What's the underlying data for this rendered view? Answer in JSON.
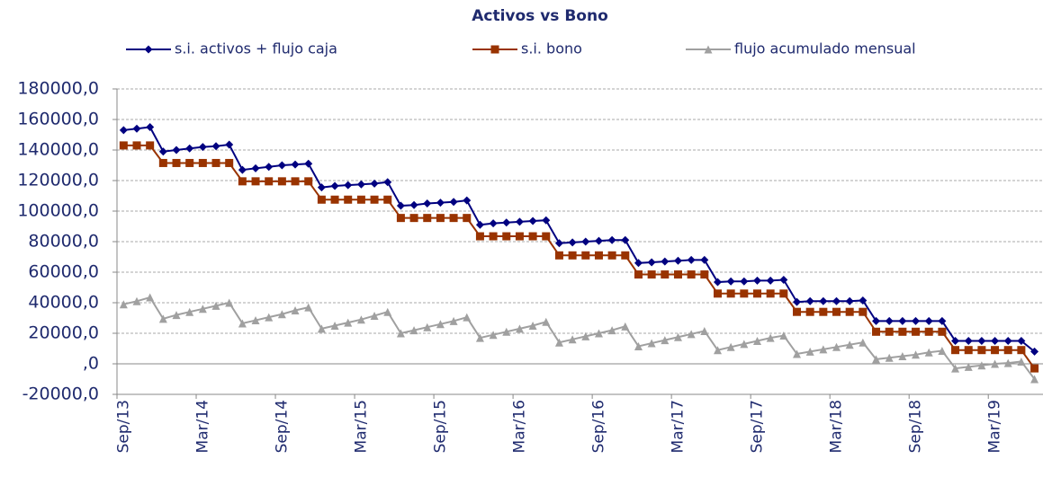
{
  "chart_data": {
    "type": "line",
    "title": "Activos vs Bono",
    "categories": [
      "Sep/13",
      null,
      null,
      null,
      null,
      null,
      "Mar/14",
      null,
      null,
      null,
      null,
      null,
      "Sep/14",
      null,
      null,
      null,
      null,
      null,
      "Mar/15",
      null,
      null,
      null,
      null,
      null,
      "Sep/15",
      null,
      null,
      null,
      null,
      null,
      "Mar/16",
      null,
      null,
      null,
      null,
      null,
      "Sep/16",
      null,
      null,
      null,
      null,
      null,
      "Mar/17",
      null,
      null,
      null,
      null,
      null,
      "Sep/17",
      null,
      null,
      null,
      null,
      null,
      "Mar/18",
      null,
      null,
      null,
      null,
      null,
      "Sep/18",
      null,
      null,
      null,
      null,
      null,
      "Mar/19",
      null,
      null,
      null
    ],
    "series": [
      {
        "name": "s.i. activos + flujo caja",
        "color": "#000080",
        "marker": "diamond",
        "values": [
          153000,
          154000,
          155000,
          139000,
          140000,
          141000,
          142000,
          142500,
          143500,
          127000,
          128000,
          129000,
          130000,
          130500,
          131000,
          115500,
          116500,
          117000,
          117500,
          118000,
          119000,
          103500,
          104000,
          105000,
          105500,
          106000,
          107000,
          91000,
          92000,
          92500,
          93000,
          93500,
          94000,
          79000,
          79500,
          80000,
          80500,
          81000,
          81000,
          66000,
          66500,
          67000,
          67500,
          68000,
          68000,
          53500,
          54000,
          54000,
          54500,
          54500,
          55000,
          40500,
          41000,
          41000,
          41000,
          41000,
          41500,
          28000,
          28000,
          28000,
          28000,
          28000,
          28000,
          15000,
          15000,
          15000,
          15000,
          15000,
          15000,
          8000
        ]
      },
      {
        "name": "s.i. bono",
        "color": "#993300",
        "marker": "square",
        "values": [
          143000,
          143000,
          143000,
          131500,
          131500,
          131500,
          131500,
          131500,
          131500,
          119500,
          119500,
          119500,
          119500,
          119500,
          119500,
          107500,
          107500,
          107500,
          107500,
          107500,
          107500,
          95500,
          95500,
          95500,
          95500,
          95500,
          95500,
          83500,
          83500,
          83500,
          83500,
          83500,
          83500,
          71000,
          71000,
          71000,
          71000,
          71000,
          71000,
          58500,
          58500,
          58500,
          58500,
          58500,
          58500,
          46000,
          46000,
          46000,
          46000,
          46000,
          46000,
          34000,
          34000,
          34000,
          34000,
          34000,
          34000,
          21000,
          21000,
          21000,
          21000,
          21000,
          21000,
          9000,
          9000,
          9000,
          9000,
          9000,
          9000,
          -3000
        ]
      },
      {
        "name": "flujo acumulado mensual",
        "color": "#a0a0a0",
        "marker": "triangle",
        "values": [
          39000,
          41000,
          43500,
          29500,
          32000,
          34000,
          36000,
          38000,
          40000,
          26500,
          28500,
          30500,
          32500,
          35000,
          37000,
          23000,
          25000,
          27000,
          29000,
          31500,
          34000,
          20000,
          22000,
          24000,
          26000,
          28000,
          30500,
          17000,
          19000,
          21000,
          23000,
          25000,
          27500,
          14000,
          16000,
          18000,
          20000,
          22000,
          24500,
          11500,
          13500,
          15500,
          17500,
          19500,
          21500,
          9000,
          11000,
          13000,
          15000,
          17000,
          18500,
          6500,
          8000,
          9500,
          11000,
          12500,
          14000,
          3000,
          4000,
          5000,
          6000,
          7500,
          8500,
          -3000,
          -2000,
          -1000,
          0,
          500,
          1500,
          -10000
        ]
      }
    ],
    "ylim": [
      -20000,
      180000
    ],
    "yticks": [
      {
        "value": -20000,
        "label": "-20000,0"
      },
      {
        "value": 0,
        "label": ",0"
      },
      {
        "value": 20000,
        "label": "20000,0"
      },
      {
        "value": 40000,
        "label": "40000,0"
      },
      {
        "value": 60000,
        "label": "60000,0"
      },
      {
        "value": 80000,
        "label": "80000,0"
      },
      {
        "value": 100000,
        "label": "100000,0"
      },
      {
        "value": 120000,
        "label": "120000,0"
      },
      {
        "value": 140000,
        "label": "140000,0"
      },
      {
        "value": 160000,
        "label": "160000,0"
      },
      {
        "value": 180000,
        "label": "180000,0"
      }
    ],
    "grid": true
  }
}
